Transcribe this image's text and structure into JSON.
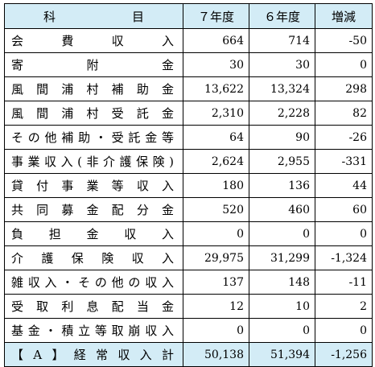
{
  "header": {
    "subject": "科　　　目",
    "year7": "７年度",
    "year6": "６年度",
    "diff": "増減"
  },
  "rows": [
    {
      "subject": "会費収入",
      "y7": "664",
      "y6": "714",
      "diff": "-50"
    },
    {
      "subject": "寄附金",
      "y7": "30",
      "y6": "30",
      "diff": "0"
    },
    {
      "subject": "風間浦村補助金",
      "y7": "13,622",
      "y6": "13,324",
      "diff": "298"
    },
    {
      "subject": "風間浦村受託金",
      "y7": "2,310",
      "y6": "2,228",
      "diff": "82"
    },
    {
      "subject": "その他補助・受託金等",
      "y7": "64",
      "y6": "90",
      "diff": "-26"
    },
    {
      "subject": "事業収入(非介護保険)",
      "y7": "2,624",
      "y6": "2,955",
      "diff": "-331"
    },
    {
      "subject": "貸付事業等収入",
      "y7": "180",
      "y6": "136",
      "diff": "44"
    },
    {
      "subject": "共同募金配分金",
      "y7": "520",
      "y6": "460",
      "diff": "60"
    },
    {
      "subject": "負担金収入",
      "y7": "0",
      "y6": "0",
      "diff": "0"
    },
    {
      "subject": "介護保険収入",
      "y7": "29,975",
      "y6": "31,299",
      "diff": "-1,324"
    },
    {
      "subject": "雑収入・その他の収入",
      "y7": "137",
      "y6": "148",
      "diff": "-11"
    },
    {
      "subject": "受取利息配当金",
      "y7": "12",
      "y6": "10",
      "diff": "2"
    },
    {
      "subject": "基金・積立等取崩収入",
      "y7": "0",
      "y6": "0",
      "diff": "0"
    }
  ],
  "total": {
    "subject": "【A】経常収入計",
    "y7": "50,138",
    "y6": "51,394",
    "diff": "-1,256"
  }
}
